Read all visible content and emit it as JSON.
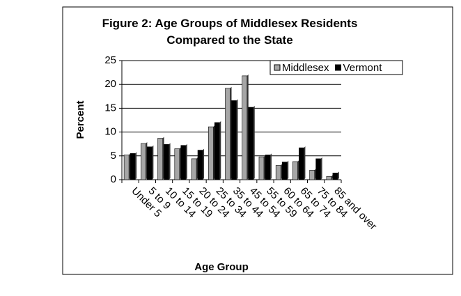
{
  "chart_data": {
    "type": "bar",
    "title": "Figure 2: Age Groups of Middlesex Residents Compared to the State",
    "x_label": "Age Group",
    "y_label": "Percent",
    "categories": [
      "Under 5",
      "5 to 9",
      "10 to 14",
      "15 to 19",
      "20 to 24",
      "25 to 34",
      "35 to 44",
      "45 to 54",
      "55 to 59",
      "60 to 64",
      "65 to 74",
      "75 to 84",
      "85 and over"
    ],
    "series": [
      {
        "name": "Middlesex",
        "color": "#a6a6a6",
        "values": [
          5.2,
          7.6,
          8.7,
          6.5,
          4.4,
          11.1,
          19.2,
          21.8,
          4.8,
          3.0,
          3.8,
          2.0,
          0.7
        ]
      },
      {
        "name": "Vermont",
        "color": "#000000",
        "values": [
          5.5,
          6.9,
          7.4,
          7.2,
          6.2,
          12.0,
          16.6,
          15.2,
          5.2,
          3.7,
          6.7,
          4.4,
          1.4
        ]
      }
    ],
    "ylim": [
      0,
      25
    ],
    "yticks": [
      0,
      5,
      10,
      15,
      20,
      25
    ],
    "grid": true,
    "legend": "upper right"
  }
}
